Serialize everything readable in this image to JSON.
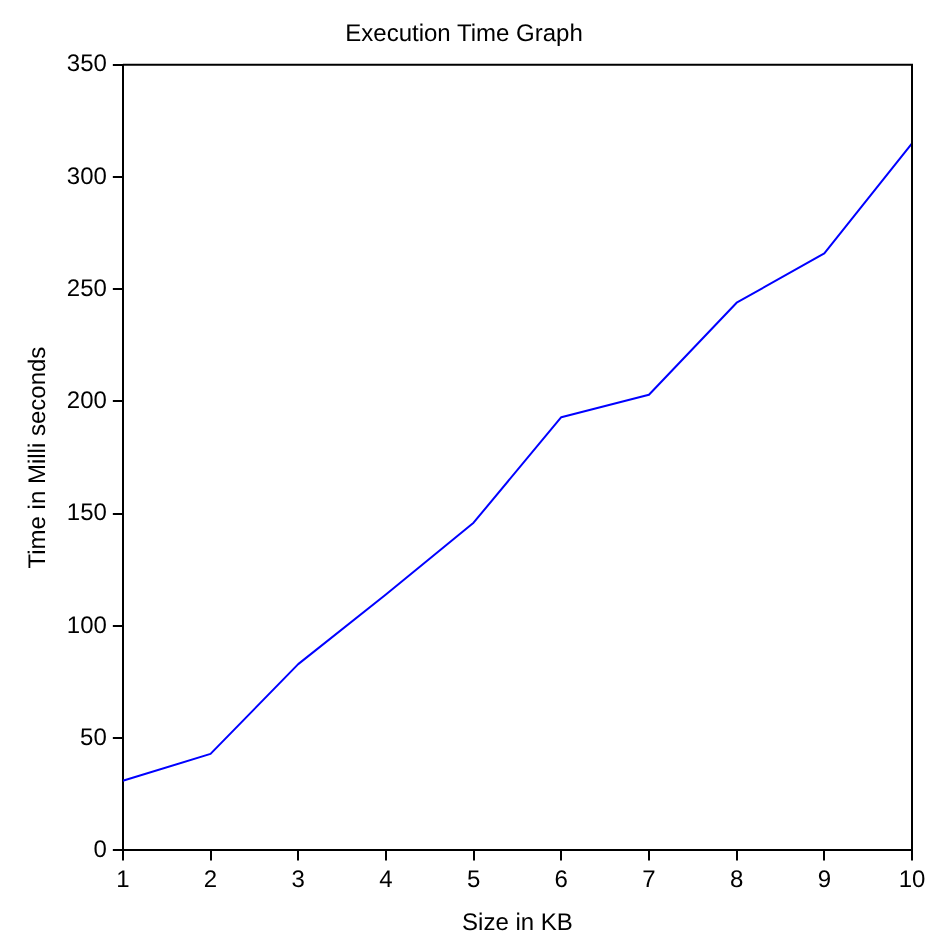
{
  "chart_data": {
    "type": "line",
    "title": "Execution Time Graph",
    "xlabel": "Size in KB",
    "ylabel": "Time in Milli seconds",
    "x": [
      1,
      2,
      3,
      4,
      5,
      6,
      7,
      8,
      9,
      10
    ],
    "series": [
      {
        "color": "#0000ff",
        "values": [
          31,
          43,
          83,
          114,
          146,
          193,
          203,
          244,
          266,
          315
        ]
      }
    ],
    "xlim": [
      1,
      10
    ],
    "xticks": [
      1,
      2,
      3,
      4,
      5,
      6,
      7,
      8,
      9,
      10
    ],
    "ylim": [
      0,
      350
    ],
    "yticks": [
      0,
      50,
      100,
      150,
      200,
      250,
      300,
      350
    ],
    "grid": false,
    "legend": false,
    "marker": "none",
    "line_style": "solid"
  }
}
